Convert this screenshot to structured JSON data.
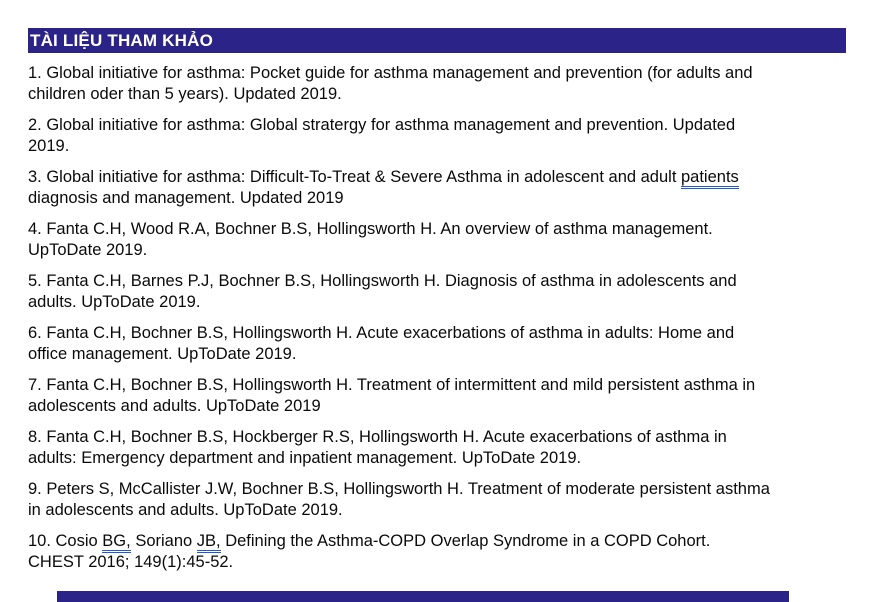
{
  "colors": {
    "navy": "#2B2387",
    "grammar_blue": "#2056DF",
    "page_bg": "#FFFFFF",
    "text": "#0A0A0A"
  },
  "header": {
    "title": "TÀI LIỆU THAM KHẢO"
  },
  "references": [
    {
      "lines": [
        [
          {
            "t": "1. Global initiative for asthma: Pocket guide for asthma management and prevention (for adults and"
          }
        ],
        [
          {
            "t": "children oder than 5 years). Updated 2019."
          }
        ]
      ]
    },
    {
      "lines": [
        [
          {
            "t": "2. Global initiative for asthma: Global stratergy for asthma management and prevention. Updated"
          }
        ],
        [
          {
            "t": "2019."
          }
        ]
      ]
    },
    {
      "lines": [
        [
          {
            "t": "3. Global initiative for asthma: Difficult-To-Treat & Severe Asthma in adolescent and adult "
          },
          {
            "t": "patients",
            "u": true
          }
        ],
        [
          {
            "t": "diagnosis and management. Updated 2019"
          }
        ]
      ]
    },
    {
      "lines": [
        [
          {
            "t": "4. Fanta C.H, Wood R.A, Bochner B.S, Hollingsworth H. An overview of asthma management."
          }
        ],
        [
          {
            "t": "UpToDate 2019."
          }
        ]
      ]
    },
    {
      "lines": [
        [
          {
            "t": "5. Fanta C.H, Barnes P.J, Bochner B.S, Hollingsworth H. Diagnosis of asthma in adolescents and"
          }
        ],
        [
          {
            "t": "adults. UpToDate 2019."
          }
        ]
      ]
    },
    {
      "lines": [
        [
          {
            "t": "6. Fanta C.H, Bochner B.S, Hollingsworth H. Acute exacerbations of asthma in adults: Home and"
          }
        ],
        [
          {
            "t": "office management. UpToDate 2019."
          }
        ]
      ]
    },
    {
      "lines": [
        [
          {
            "t": "7. Fanta C.H, Bochner B.S, Hollingsworth H. Treatment of intermittent and mild persistent asthma in"
          }
        ],
        [
          {
            "t": "adolescents and adults. UpToDate 2019"
          }
        ]
      ]
    },
    {
      "lines": [
        [
          {
            "t": "8. Fanta C.H, Bochner B.S, Hockberger R.S, Hollingsworth H. Acute exacerbations of asthma in"
          }
        ],
        [
          {
            "t": "adults: Emergency department and inpatient management. UpToDate 2019."
          }
        ]
      ]
    },
    {
      "lines": [
        [
          {
            "t": "9. Peters S, McCallister J.W, Bochner B.S, Hollingsworth H. Treatment of moderate persistent asthma"
          }
        ],
        [
          {
            "t": "in adolescents and adults. UpToDate 2019."
          }
        ]
      ]
    },
    {
      "lines": [
        [
          {
            "t": "10. Cosio "
          },
          {
            "t": "BG,",
            "u": true
          },
          {
            "t": " Soriano "
          },
          {
            "t": "JB,",
            "u": true
          },
          {
            "t": " Defining the Asthma-COPD Overlap Syndrome in a COPD Cohort."
          }
        ],
        [
          {
            "t": "CHEST 2016; 149(1):45-52."
          }
        ]
      ]
    }
  ]
}
